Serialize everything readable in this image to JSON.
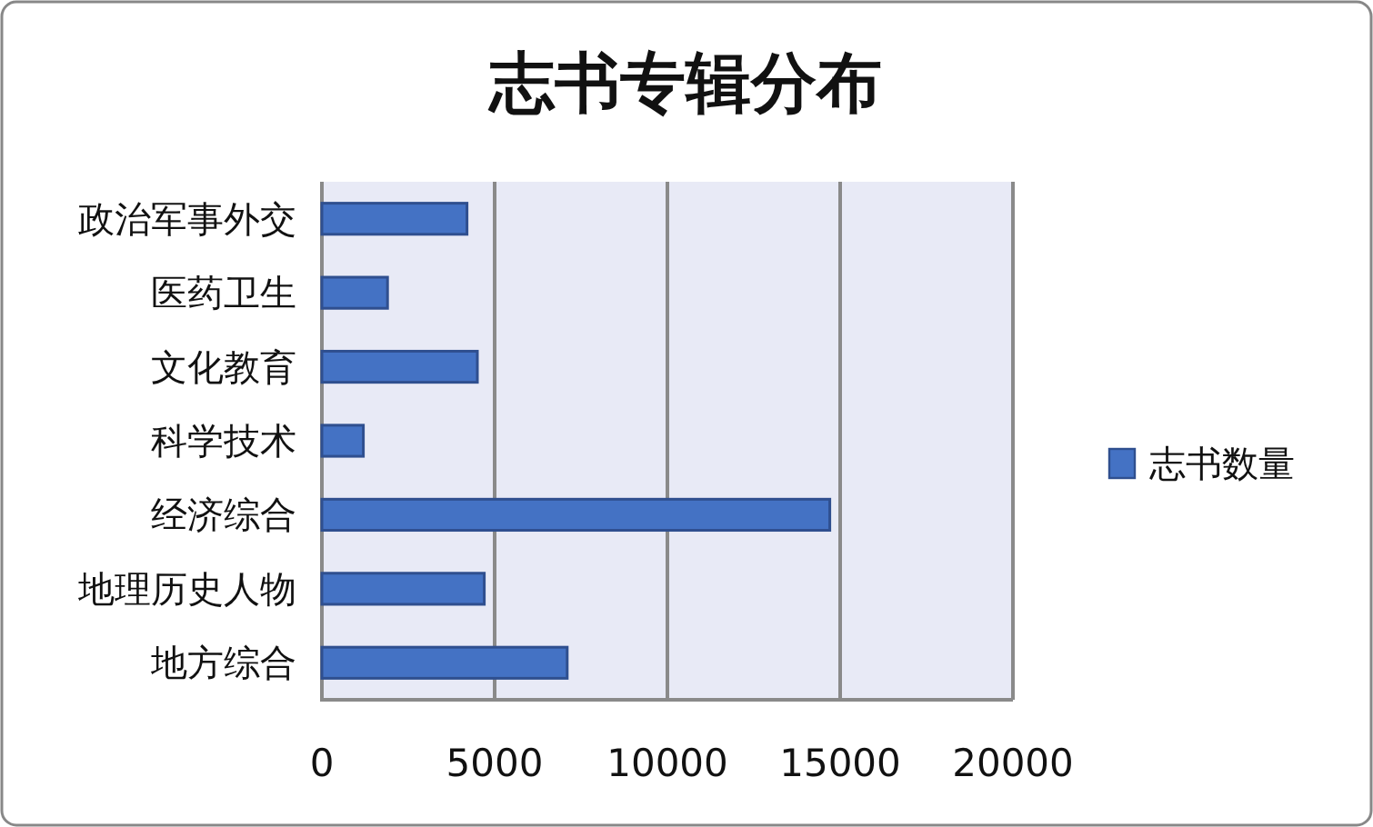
{
  "chart_data": {
    "type": "bar",
    "orientation": "horizontal",
    "title": "志书专辑分布",
    "categories": [
      "政治军事外交",
      "医药卫生",
      "文化教育",
      "科学技术",
      "经济综合",
      "地理历史人物",
      "地方综合"
    ],
    "series": [
      {
        "name": "志书数量",
        "color": "#4472c4",
        "values": [
          4200,
          1900,
          4500,
          1200,
          14700,
          4700,
          7100
        ]
      }
    ],
    "xlim": [
      0,
      20000
    ],
    "xticks": [
      0,
      5000,
      10000,
      15000,
      20000
    ],
    "grid": "x",
    "legend": "right"
  }
}
